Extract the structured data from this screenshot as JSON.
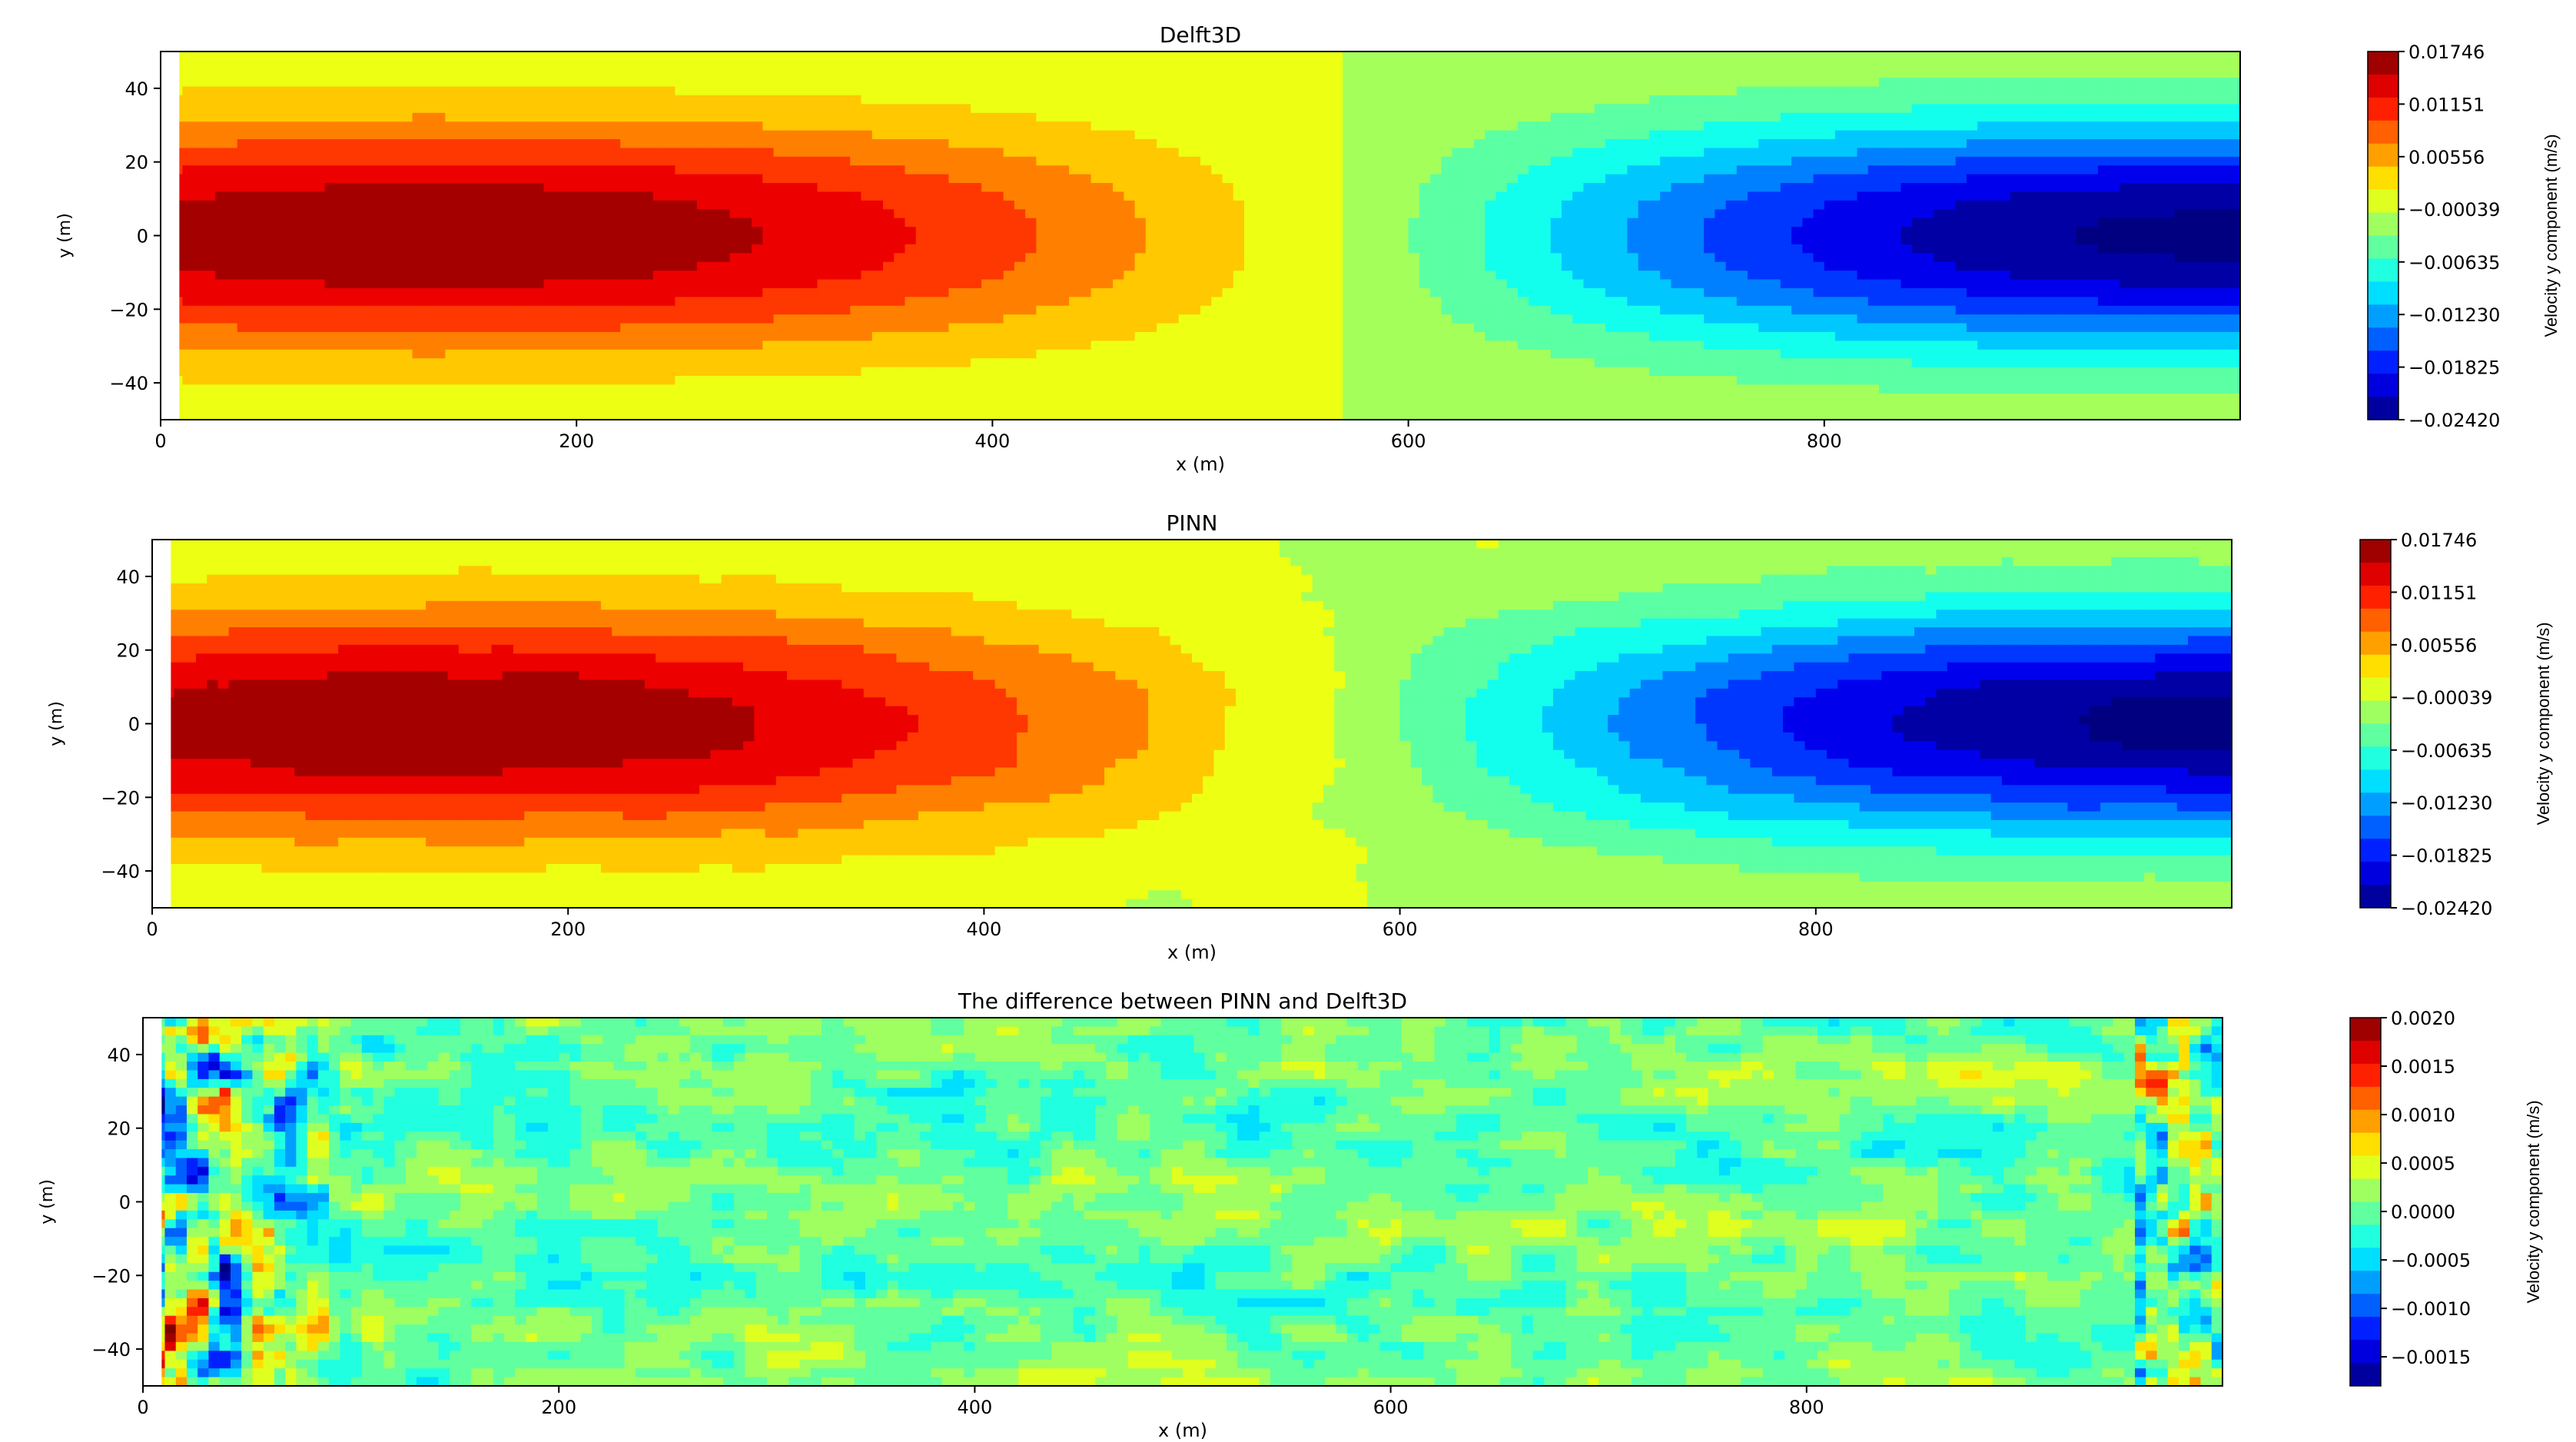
{
  "chart_data": [
    {
      "type": "heatmap",
      "title": "Delft3D",
      "xlabel": "x (m)",
      "ylabel": "y (m)",
      "xlim": [
        0,
        1000
      ],
      "ylim": [
        -50,
        50
      ],
      "x_ticks": [
        0,
        200,
        400,
        600,
        800
      ],
      "y_ticks": [
        -40,
        -20,
        0,
        20,
        40
      ],
      "field": "smooth cosine-shaped y-velocity: positive maximum near x=100-200, y=0; sign change near x=570; negative minimum near x=980, y=0",
      "colorbar": {
        "label": "Velocity y component (m/s)",
        "min": -0.0242,
        "max": 0.01746,
        "tick_values": [
          0.01746,
          0.01151,
          0.00556,
          -0.00039,
          -0.00635,
          -0.0123,
          -0.01825,
          -0.0242
        ],
        "tick_labels": [
          "0.01746",
          "0.01151",
          "0.00556",
          "−0.00039",
          "−0.00635",
          "−0.01230",
          "−0.01825",
          "−0.02420"
        ],
        "colormap": "jet"
      }
    },
    {
      "type": "heatmap",
      "title": "PINN",
      "xlabel": "x (m)",
      "ylabel": "y (m)",
      "xlim": [
        0,
        1000
      ],
      "ylim": [
        -50,
        50
      ],
      "x_ticks": [
        0,
        200,
        400,
        600,
        800
      ],
      "y_ticks": [
        -40,
        -20,
        0,
        20,
        40
      ],
      "field": "same pattern as Delft3D with slightly irregular contours",
      "colorbar": {
        "label": "Velocity y component (m/s)",
        "min": -0.0242,
        "max": 0.01746,
        "tick_values": [
          0.01746,
          0.01151,
          0.00556,
          -0.00039,
          -0.00635,
          -0.0123,
          -0.01825,
          -0.0242
        ],
        "tick_labels": [
          "0.01746",
          "0.01151",
          "0.00556",
          "−0.00039",
          "−0.00635",
          "−0.01230",
          "−0.01825",
          "−0.02420"
        ],
        "colormap": "jet"
      }
    },
    {
      "type": "heatmap",
      "title": "The difference between PINN and Delft3D",
      "xlabel": "x (m)",
      "ylabel": "y (m)",
      "xlim": [
        0,
        1000
      ],
      "ylim": [
        -50,
        50
      ],
      "x_ticks": [
        0,
        200,
        400,
        600,
        800
      ],
      "y_ticks": [
        -40,
        -20,
        0,
        20,
        40
      ],
      "field": "noisy difference field mostly within -0.0005 to 0.0005, with larger +/- blobs near the left boundary (x<120)",
      "colorbar": {
        "label": "Velocity y component (m/s)",
        "min": -0.0018,
        "max": 0.002,
        "tick_values": [
          0.002,
          0.0015,
          0.001,
          0.0005,
          0.0,
          -0.0005,
          -0.001,
          -0.0015
        ],
        "tick_labels": [
          "0.0020",
          "0.0015",
          "0.0010",
          "0.0005",
          "0.0000",
          "−0.0005",
          "−0.0010",
          "−0.0015"
        ],
        "colormap": "jet"
      }
    }
  ]
}
